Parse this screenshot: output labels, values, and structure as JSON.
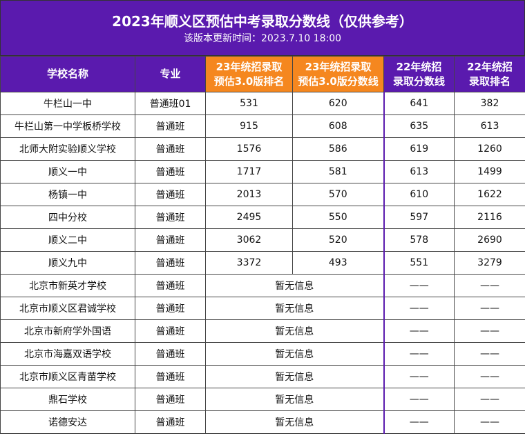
{
  "header": {
    "title": "2023年顺义区预估中考录取分数线（仅供参考）",
    "subtitle": "该版本更新时间：2023.7.10 18:00"
  },
  "table": {
    "headers": [
      "学校名称",
      "专业",
      "23年统招录取\n预估3.0版排名",
      "23年统招录取\n预估3.0版分数线",
      "22年统招\n录取分数线",
      "22年统招\n录取排名"
    ],
    "rows": [
      [
        "牛栏山一中",
        "普通班01",
        531,
        620,
        641,
        382
      ],
      [
        "牛栏山第一中学板桥学校",
        "普通班",
        915,
        608,
        635,
        613
      ],
      [
        "北师大附实验顺义学校",
        "普通班",
        1576,
        586,
        619,
        1260
      ],
      [
        "顺义一中",
        "普通班",
        1717,
        581,
        613,
        1499
      ],
      [
        "杨镇一中",
        "普通班",
        2013,
        570,
        610,
        1622
      ],
      [
        "四中分校",
        "普通班",
        2495,
        550,
        597,
        2116
      ],
      [
        "顺义二中",
        "普通班",
        3062,
        520,
        578,
        2690
      ],
      [
        "顺义九中",
        "普通班",
        3372,
        493,
        551,
        3279
      ],
      [
        "北京市新英才学校",
        "普通班",
        "暂无信息",
        "——",
        "——"
      ],
      [
        "北京市顺义区君诚学校",
        "普通班",
        "暂无信息",
        "——",
        "——"
      ],
      [
        "北京市新府学外国语",
        "普通班",
        "暂无信息",
        "——",
        "——"
      ],
      [
        "北京市海嘉双语学校",
        "普通班",
        "暂无信息",
        "——",
        "——"
      ],
      [
        "北京市顺义区青苗学校",
        "普通班",
        "暂无信息",
        "——",
        "——"
      ],
      [
        "鼎石学校",
        "普通班",
        "暂无信息",
        "——",
        "——"
      ],
      [
        "诺德安达",
        "普通班",
        "暂无信息",
        "——",
        "——"
      ]
    ]
  }
}
